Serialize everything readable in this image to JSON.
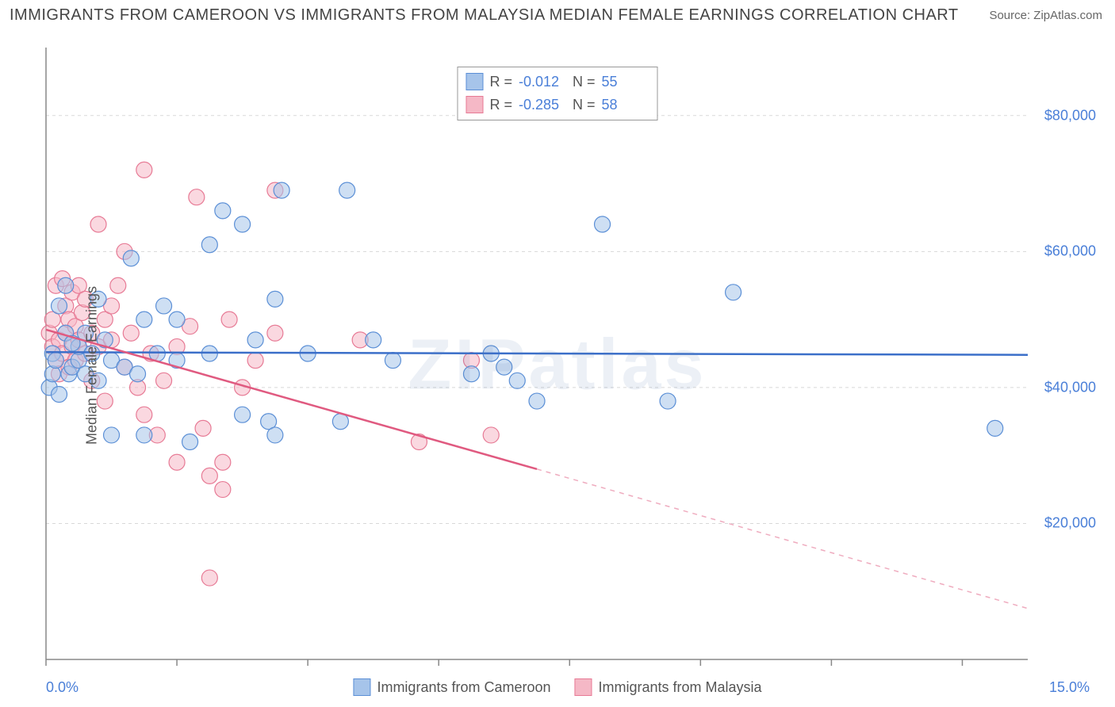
{
  "title": "IMMIGRANTS FROM CAMEROON VS IMMIGRANTS FROM MALAYSIA MEDIAN FEMALE EARNINGS CORRELATION CHART",
  "source": "Source: ZipAtlas.com",
  "ylabel": "Median Female Earnings",
  "watermark": "ZIPatlas",
  "chart": {
    "type": "scatter-with-regression",
    "xlim": [
      0,
      15
    ],
    "ylim": [
      0,
      90000
    ],
    "xtick_positions": [
      0,
      2,
      4,
      6,
      8,
      10,
      12,
      14
    ],
    "xtick_labels_shown": {
      "start": "0.0%",
      "end": "15.0%"
    },
    "ytick_values": [
      20000,
      40000,
      60000,
      80000
    ],
    "ytick_labels": [
      "$20,000",
      "$40,000",
      "$60,000",
      "$80,000"
    ],
    "grid_color": "#d8d8d8",
    "axis_color": "#888888",
    "background_color": "#ffffff",
    "marker_radius": 10,
    "marker_opacity": 0.55,
    "line_width": 2.5,
    "series": [
      {
        "name": "Immigrants from Cameroon",
        "color_fill": "#a6c4ea",
        "color_stroke": "#5b8fd6",
        "line_color": "#3b6fc9",
        "R": "-0.012",
        "N": "55",
        "regression": {
          "x1": 0,
          "y1": 45200,
          "x2": 15,
          "y2": 44800,
          "solid_until_x": 15
        },
        "points": [
          [
            0.05,
            40000
          ],
          [
            0.1,
            42000
          ],
          [
            0.1,
            45000
          ],
          [
            0.15,
            44000
          ],
          [
            0.2,
            52000
          ],
          [
            0.2,
            39000
          ],
          [
            0.3,
            55000
          ],
          [
            0.3,
            48000
          ],
          [
            0.35,
            42000
          ],
          [
            0.4,
            43000
          ],
          [
            0.5,
            44000
          ],
          [
            0.5,
            46000
          ],
          [
            0.6,
            48000
          ],
          [
            0.6,
            42000
          ],
          [
            0.7,
            45000
          ],
          [
            0.8,
            53000
          ],
          [
            0.8,
            41000
          ],
          [
            0.9,
            47000
          ],
          [
            1.0,
            44000
          ],
          [
            1.0,
            33000
          ],
          [
            1.2,
            43000
          ],
          [
            1.3,
            59000
          ],
          [
            1.4,
            42000
          ],
          [
            1.5,
            50000
          ],
          [
            1.5,
            33000
          ],
          [
            1.7,
            45000
          ],
          [
            1.8,
            52000
          ],
          [
            2.0,
            44000
          ],
          [
            2.0,
            50000
          ],
          [
            2.2,
            32000
          ],
          [
            2.5,
            61000
          ],
          [
            2.5,
            45000
          ],
          [
            2.7,
            66000
          ],
          [
            3.0,
            64000
          ],
          [
            3.0,
            36000
          ],
          [
            3.2,
            47000
          ],
          [
            3.4,
            35000
          ],
          [
            3.5,
            53000
          ],
          [
            3.5,
            33000
          ],
          [
            3.6,
            69000
          ],
          [
            4.0,
            45000
          ],
          [
            4.5,
            35000
          ],
          [
            4.6,
            69000
          ],
          [
            5.0,
            47000
          ],
          [
            5.3,
            44000
          ],
          [
            6.5,
            42000
          ],
          [
            6.8,
            45000
          ],
          [
            7.0,
            43000
          ],
          [
            7.2,
            41000
          ],
          [
            7.5,
            38000
          ],
          [
            8.5,
            64000
          ],
          [
            9.5,
            38000
          ],
          [
            10.5,
            54000
          ],
          [
            14.5,
            34000
          ],
          [
            0.4,
            46500
          ]
        ]
      },
      {
        "name": "Immigrants from Malaysia",
        "color_fill": "#f5b8c6",
        "color_stroke": "#e77a95",
        "line_color": "#e05a80",
        "R": "-0.285",
        "N": "58",
        "regression": {
          "x1": 0,
          "y1": 48500,
          "x2": 15,
          "y2": 7500,
          "solid_until_x": 7.5
        },
        "points": [
          [
            0.05,
            48000
          ],
          [
            0.1,
            50000
          ],
          [
            0.1,
            46000
          ],
          [
            0.15,
            44000
          ],
          [
            0.15,
            55000
          ],
          [
            0.2,
            47000
          ],
          [
            0.2,
            42000
          ],
          [
            0.25,
            56000
          ],
          [
            0.25,
            45000
          ],
          [
            0.3,
            52000
          ],
          [
            0.3,
            48000
          ],
          [
            0.35,
            50000
          ],
          [
            0.35,
            43000
          ],
          [
            0.4,
            54000
          ],
          [
            0.4,
            46000
          ],
          [
            0.45,
            49000
          ],
          [
            0.45,
            44000
          ],
          [
            0.5,
            55000
          ],
          [
            0.5,
            47000
          ],
          [
            0.55,
            51000
          ],
          [
            0.6,
            45000
          ],
          [
            0.6,
            53000
          ],
          [
            0.7,
            48000
          ],
          [
            0.7,
            41000
          ],
          [
            0.8,
            46000
          ],
          [
            0.8,
            64000
          ],
          [
            0.9,
            50000
          ],
          [
            0.9,
            38000
          ],
          [
            1.0,
            47000
          ],
          [
            1.0,
            52000
          ],
          [
            1.1,
            55000
          ],
          [
            1.2,
            60000
          ],
          [
            1.2,
            43000
          ],
          [
            1.3,
            48000
          ],
          [
            1.4,
            40000
          ],
          [
            1.5,
            72000
          ],
          [
            1.5,
            36000
          ],
          [
            1.6,
            45000
          ],
          [
            1.7,
            33000
          ],
          [
            1.8,
            41000
          ],
          [
            2.0,
            46000
          ],
          [
            2.0,
            29000
          ],
          [
            2.2,
            49000
          ],
          [
            2.3,
            68000
          ],
          [
            2.4,
            34000
          ],
          [
            2.5,
            12000
          ],
          [
            2.5,
            27000
          ],
          [
            2.7,
            29000
          ],
          [
            2.7,
            25000
          ],
          [
            2.8,
            50000
          ],
          [
            3.0,
            40000
          ],
          [
            3.2,
            44000
          ],
          [
            3.5,
            48000
          ],
          [
            3.5,
            69000
          ],
          [
            4.8,
            47000
          ],
          [
            5.7,
            32000
          ],
          [
            6.5,
            44000
          ],
          [
            6.8,
            33000
          ]
        ]
      }
    ]
  },
  "legend_bottom": [
    {
      "label": "Immigrants from Cameroon",
      "fill": "#a6c4ea",
      "stroke": "#5b8fd6"
    },
    {
      "label": "Immigrants from Malaysia",
      "fill": "#f5b8c6",
      "stroke": "#e77a95"
    }
  ]
}
